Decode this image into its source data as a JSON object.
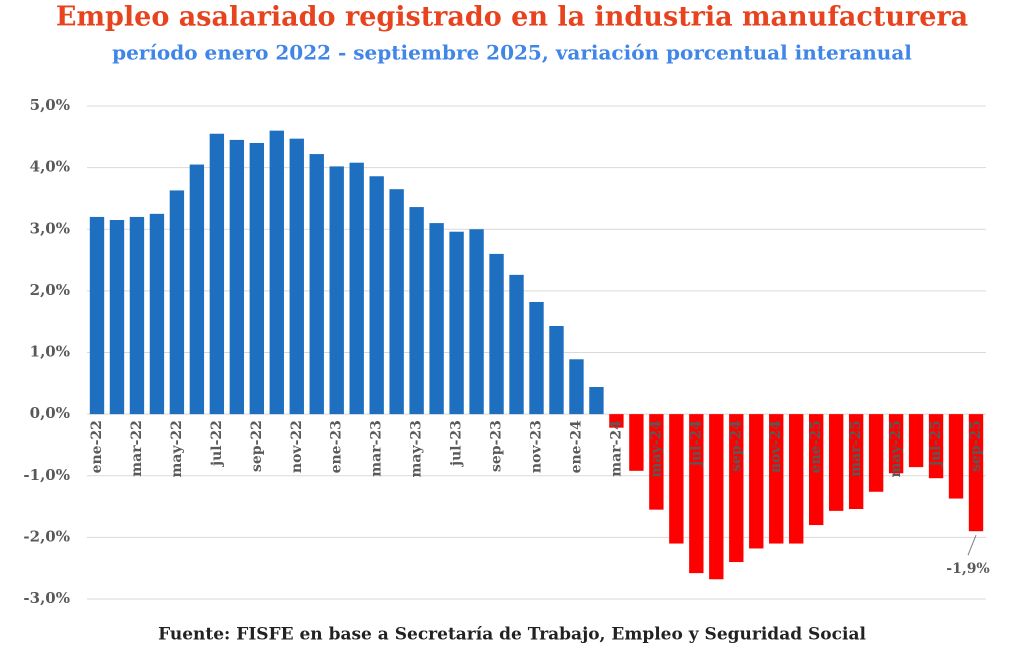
{
  "chart_data": {
    "type": "bar",
    "title": "Empleo asalariado registrado en la industria manufacturera",
    "subtitle": "período enero 2022 - septiembre 2025, variación porcentual interanual",
    "source": "Fuente: FISFE en base a Secretaría de Trabajo, Empleo y Seguridad Social",
    "categories": [
      "ene-22",
      null,
      "mar-22",
      null,
      "may-22",
      null,
      "jul-22",
      null,
      "sep-22",
      null,
      "nov-22",
      null,
      "ene-23",
      null,
      "mar-23",
      null,
      "may-23",
      null,
      "jul-23",
      null,
      "sep-23",
      null,
      "nov-23",
      null,
      "ene-24",
      null,
      "mar-24",
      null,
      "may-24",
      null,
      "jul-24",
      null,
      "sep-24",
      null,
      "nov-24",
      null,
      "ene-25",
      null,
      "mar-25",
      null,
      "may-25",
      null,
      "jul-25",
      null,
      "sep-25"
    ],
    "values": [
      3.2,
      3.15,
      3.2,
      3.25,
      3.63,
      4.05,
      4.55,
      4.45,
      4.4,
      4.6,
      4.47,
      4.22,
      4.02,
      4.08,
      3.86,
      3.65,
      3.36,
      3.1,
      2.96,
      3.0,
      2.6,
      2.26,
      1.82,
      1.43,
      0.89,
      0.44,
      -0.22,
      -0.92,
      -1.55,
      -2.1,
      -2.58,
      -2.68,
      -2.4,
      -2.18,
      -2.1,
      -2.1,
      -1.8,
      -1.57,
      -1.54,
      -1.26,
      -0.96,
      -0.86,
      -1.04,
      -1.37,
      -1.9
    ],
    "value_labels": [
      null,
      null,
      null,
      null,
      null,
      null,
      null,
      null,
      null,
      null,
      null,
      null,
      null,
      null,
      null,
      null,
      null,
      null,
      null,
      null,
      null,
      null,
      null,
      null,
      null,
      null,
      null,
      null,
      null,
      null,
      null,
      null,
      null,
      null,
      null,
      null,
      null,
      null,
      null,
      null,
      null,
      null,
      null,
      null,
      "-1,9%"
    ],
    "positive_color": "#1f6fc1",
    "negative_color": "#ff0000",
    "ylim": [
      -3,
      5
    ],
    "yticks": [
      {
        "value": -3,
        "label": "-3,0%"
      },
      {
        "value": -2,
        "label": "-2,0%"
      },
      {
        "value": -1,
        "label": "-1,0%"
      },
      {
        "value": 0,
        "label": "0,0%"
      },
      {
        "value": 1,
        "label": "1,0%"
      },
      {
        "value": 2,
        "label": "2,0%"
      },
      {
        "value": 3,
        "label": "3,0%"
      },
      {
        "value": 4,
        "label": "4,0%"
      },
      {
        "value": 5,
        "label": "5,0%"
      }
    ],
    "grid": true
  }
}
